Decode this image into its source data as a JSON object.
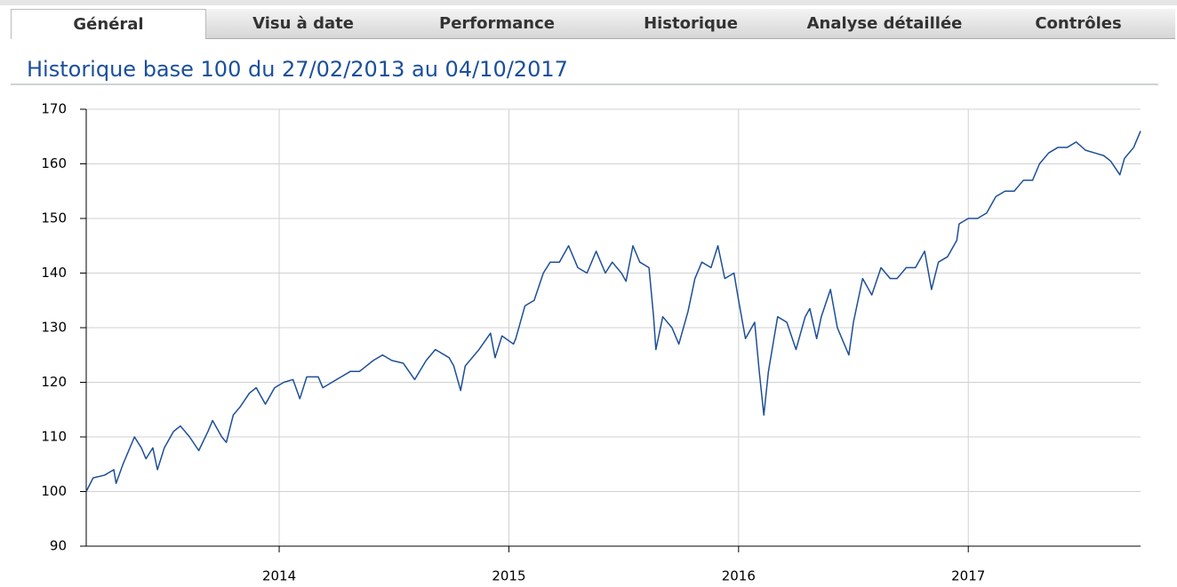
{
  "tabs": [
    "Général",
    "Visu à date",
    "Performance",
    "Historique",
    "Analyse détaillée",
    "Contrôles"
  ],
  "chart_data": {
    "type": "line",
    "title": "Historique base 100 du 27/02/2013 au 04/10/2017",
    "color": "#1d4f97",
    "grid": true,
    "xlim": [
      2013.16,
      2017.75
    ],
    "xticks": [
      2014,
      2015,
      2016,
      2017
    ],
    "ylim": [
      90,
      170
    ],
    "yticks": [
      90,
      100,
      110,
      120,
      130,
      140,
      150,
      160,
      170
    ],
    "x": [
      2013.16,
      2013.19,
      2013.24,
      2013.28,
      2013.29,
      2013.32,
      2013.37,
      2013.4,
      2013.42,
      2013.45,
      2013.47,
      2013.5,
      2013.54,
      2013.57,
      2013.61,
      2013.65,
      2013.69,
      2013.71,
      2013.75,
      2013.77,
      2013.8,
      2013.83,
      2013.87,
      2013.9,
      2013.94,
      2013.98,
      2014.02,
      2014.06,
      2014.09,
      2014.12,
      2014.17,
      2014.19,
      2014.23,
      2014.27,
      2014.31,
      2014.35,
      2014.41,
      2014.45,
      2014.49,
      2014.54,
      2014.59,
      2014.64,
      2014.68,
      2014.74,
      2014.76,
      2014.79,
      2014.81,
      2014.87,
      2014.92,
      2014.94,
      2014.97,
      2015.02,
      2015.03,
      2015.07,
      2015.11,
      2015.15,
      2015.18,
      2015.22,
      2015.26,
      2015.3,
      2015.34,
      2015.38,
      2015.42,
      2015.45,
      2015.49,
      2015.51,
      2015.54,
      2015.57,
      2015.61,
      2015.63,
      2015.64,
      2015.67,
      2015.71,
      2015.74,
      2015.78,
      2015.81,
      2015.84,
      2015.88,
      2015.91,
      2015.94,
      2015.98,
      2016.0,
      2016.03,
      2016.07,
      2016.09,
      2016.11,
      2016.13,
      2016.17,
      2016.21,
      2016.25,
      2016.29,
      2016.31,
      2016.34,
      2016.36,
      2016.4,
      2016.43,
      2016.46,
      2016.48,
      2016.5,
      2016.54,
      2016.58,
      2016.62,
      2016.66,
      2016.69,
      2016.73,
      2016.77,
      2016.81,
      2016.84,
      2016.87,
      2016.91,
      2016.95,
      2016.96,
      2017.0,
      2017.04,
      2017.08,
      2017.12,
      2017.16,
      2017.2,
      2017.24,
      2017.28,
      2017.31,
      2017.35,
      2017.39,
      2017.43,
      2017.47,
      2017.51,
      2017.55,
      2017.59,
      2017.62,
      2017.66,
      2017.68,
      2017.72,
      2017.75
    ],
    "values": [
      100,
      102.5,
      103,
      104,
      101.5,
      105,
      110,
      108,
      106,
      108,
      104,
      108,
      111,
      112,
      110,
      107.5,
      111,
      113,
      110,
      109,
      114,
      115.5,
      118,
      119,
      116,
      119,
      120,
      120.5,
      117,
      121,
      121,
      119,
      120,
      121,
      122,
      122,
      124,
      125,
      124,
      123.5,
      120.5,
      124,
      126,
      124.5,
      123,
      118.5,
      123,
      126,
      129,
      124.5,
      128.5,
      127,
      128,
      134,
      135,
      140,
      142,
      142,
      145,
      141,
      140,
      144,
      140,
      142,
      140,
      138.5,
      145,
      142,
      141,
      132,
      126,
      132,
      130,
      127,
      133,
      139,
      142,
      141,
      145,
      139,
      140,
      135,
      128,
      131,
      122,
      114,
      122,
      132,
      131,
      126,
      132,
      133.5,
      128,
      132,
      137,
      130,
      127,
      125,
      131,
      139,
      136,
      141,
      139,
      139,
      141,
      141,
      144,
      137,
      142,
      143,
      146,
      149,
      150,
      150,
      151,
      154,
      155,
      155,
      157,
      157,
      160,
      162,
      163,
      163,
      164,
      162.5,
      162,
      161.5,
      160.5,
      158,
      161,
      163,
      166
    ]
  }
}
